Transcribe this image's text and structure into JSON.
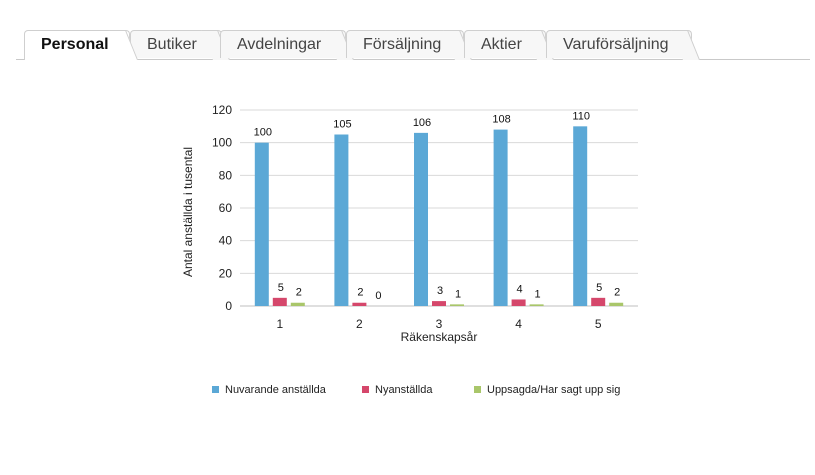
{
  "tabs": [
    {
      "label": "Personal",
      "active": true
    },
    {
      "label": "Butiker",
      "active": false
    },
    {
      "label": "Avdelningar",
      "active": false
    },
    {
      "label": "Försäljning",
      "active": false
    },
    {
      "label": "Aktier",
      "active": false
    },
    {
      "label": "Varuförsäljning",
      "active": false
    }
  ],
  "chart_data": {
    "type": "bar",
    "categories": [
      "1",
      "2",
      "3",
      "4",
      "5"
    ],
    "series": [
      {
        "name": "Nuvarande anställda",
        "color": "#5ba8d6",
        "values": [
          100,
          105,
          106,
          108,
          110
        ]
      },
      {
        "name": "Nyanställda",
        "color": "#d5476b",
        "values": [
          5,
          2,
          3,
          4,
          5
        ]
      },
      {
        "name": "Uppsagda/Har sagt upp sig",
        "color": "#a9c66a",
        "values": [
          2,
          0,
          1,
          1,
          2
        ]
      }
    ],
    "xlabel": "Räkenskapsår",
    "ylabel": "Antal anställda i tusental",
    "ylim": [
      0,
      120
    ],
    "yticks": [
      0,
      20,
      40,
      60,
      80,
      100,
      120
    ],
    "grid": true,
    "legend": "bottom"
  }
}
